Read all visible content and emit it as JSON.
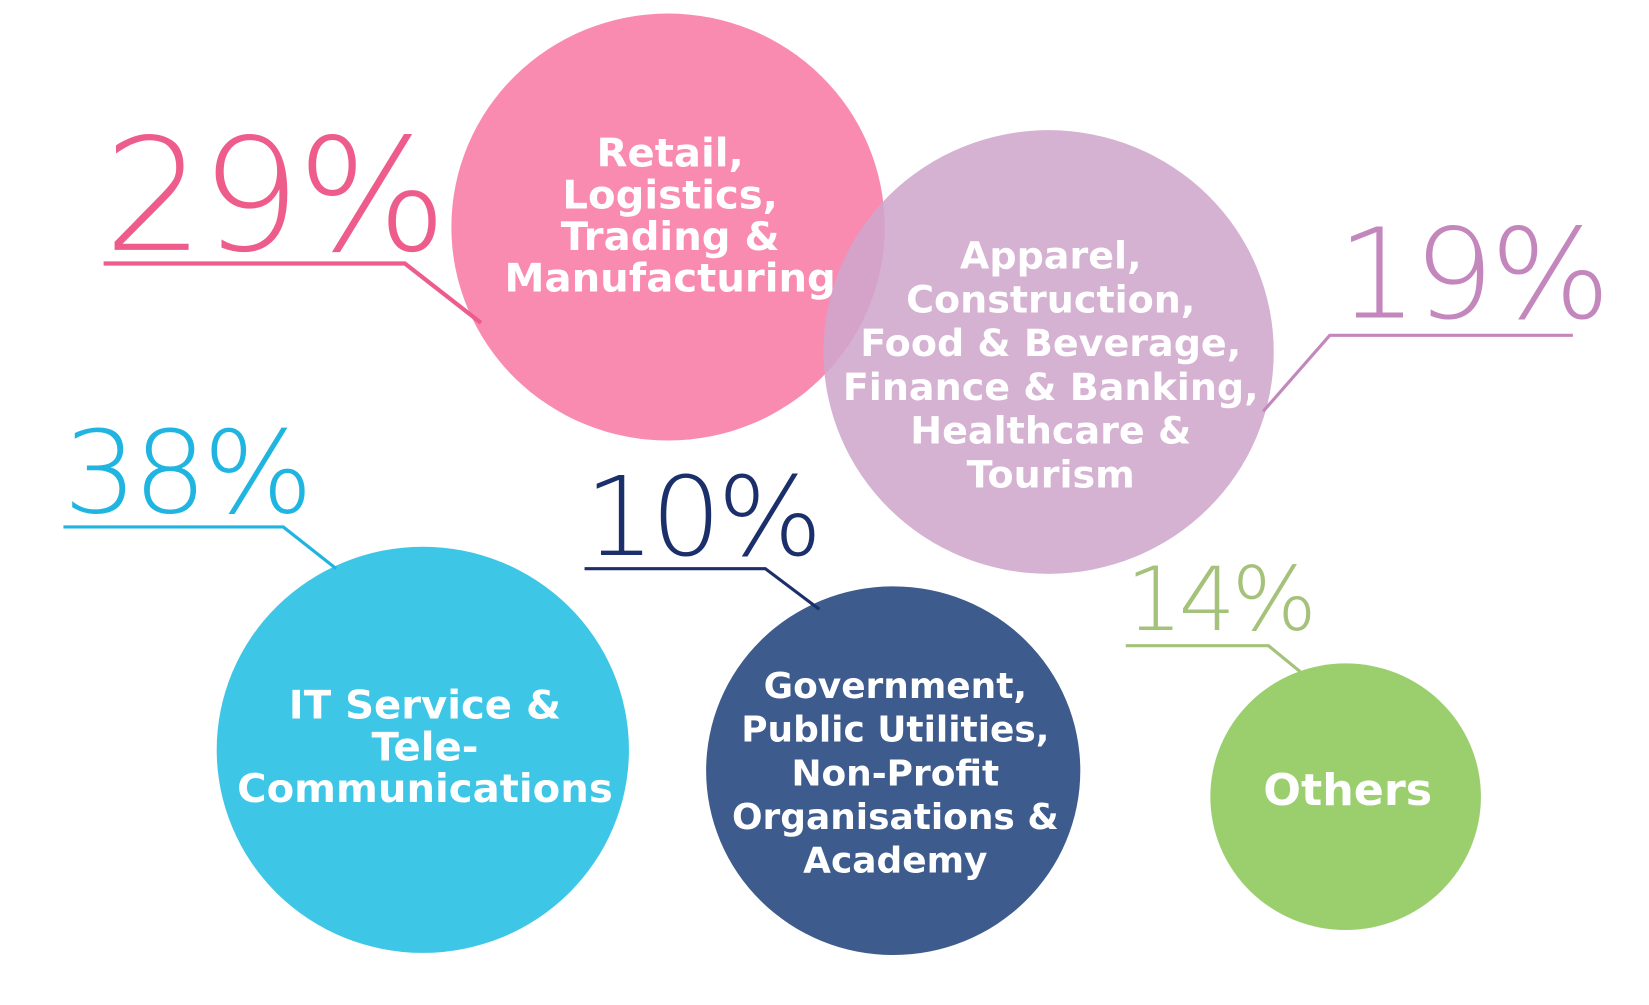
{
  "chart_data": {
    "type": "bubble",
    "title": "",
    "categories": [
      "Retail, Logistics, Trading & Manufacturing",
      "Apparel, Construction, Food & Beverage, Finance & Banking, Healthcare & Tourism",
      "IT Service & Tele-Communications",
      "Government, Public Utilities, Non-Profit Organisations & Academy",
      "Others"
    ],
    "values": [
      29,
      19,
      38,
      10,
      14
    ],
    "items": [
      {
        "value_label": "29%",
        "label_lines": [
          "Retail,",
          "Logistics,",
          "Trading &",
          "Manufacturing"
        ],
        "bubble_color": "#f98bb0",
        "text_color": "#ee5c8c"
      },
      {
        "value_label": "19%",
        "label_lines": [
          "Apparel,",
          "Construction,",
          "Food & Beverage,",
          "Finance & Banking,",
          "Healthcare &",
          "Tourism"
        ],
        "bubble_color": "#cfa6cc",
        "text_color": "#c387bd"
      },
      {
        "value_label": "38%",
        "label_lines": [
          "IT Service &",
          "Tele-",
          "Communications"
        ],
        "bubble_color": "#3ec6e6",
        "text_color": "#1fb5e0"
      },
      {
        "value_label": "10%",
        "label_lines": [
          "Government,",
          "Public Utilities,",
          "Non-Profit",
          "Organisations &",
          "Academy"
        ],
        "bubble_color": "#3d5b8c",
        "text_color": "#1b2f6b"
      },
      {
        "value_label": "14%",
        "label_lines": [
          "Others"
        ],
        "bubble_color": "#9bcf6e",
        "text_color": "#a5c27a"
      }
    ],
    "legend": "none",
    "grid": false
  }
}
